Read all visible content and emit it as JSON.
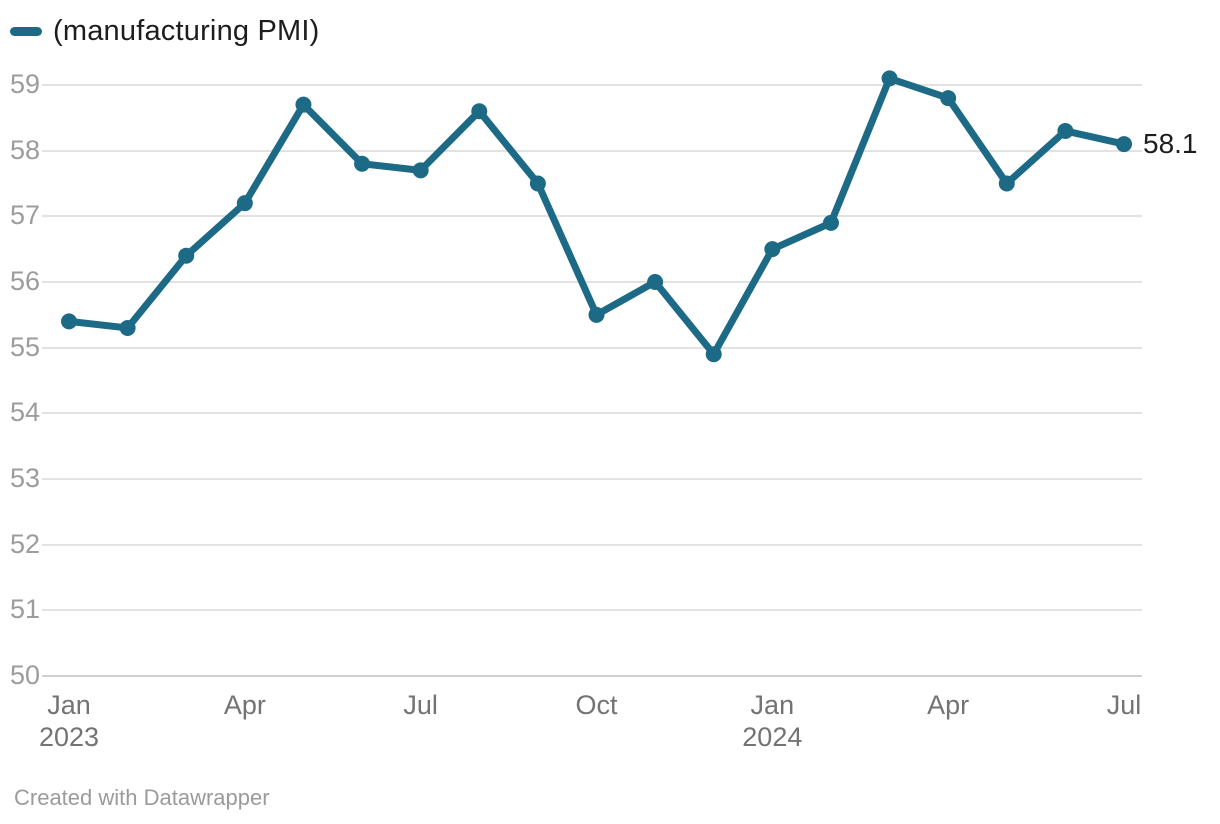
{
  "legend": {
    "series_label": "(manufacturing PMI)"
  },
  "chart_data": {
    "type": "line",
    "title": "",
    "xlabel": "",
    "ylabel": "",
    "grid": "horizontal",
    "legend_position": "top-left",
    "ylim": [
      50,
      59.4
    ],
    "y_ticks": [
      50,
      51,
      52,
      53,
      54,
      55,
      56,
      57,
      58,
      59
    ],
    "x_ticks": [
      {
        "index": 0,
        "label": "Jan",
        "sublabel": "2023"
      },
      {
        "index": 3,
        "label": "Apr",
        "sublabel": ""
      },
      {
        "index": 6,
        "label": "Jul",
        "sublabel": ""
      },
      {
        "index": 9,
        "label": "Oct",
        "sublabel": ""
      },
      {
        "index": 12,
        "label": "Jan",
        "sublabel": "2024"
      },
      {
        "index": 15,
        "label": "Apr",
        "sublabel": ""
      },
      {
        "index": 18,
        "label": "Jul",
        "sublabel": ""
      }
    ],
    "series": [
      {
        "name": "(manufacturing PMI)",
        "x": [
          "Jan 2023",
          "Feb 2023",
          "Mar 2023",
          "Apr 2023",
          "May 2023",
          "Jun 2023",
          "Jul 2023",
          "Aug 2023",
          "Sep 2023",
          "Oct 2023",
          "Nov 2023",
          "Dec 2023",
          "Jan 2024",
          "Feb 2024",
          "Mar 2024",
          "Apr 2024",
          "May 2024",
          "Jun 2024",
          "Jul 2024"
        ],
        "values": [
          55.4,
          55.3,
          56.4,
          57.2,
          58.7,
          57.8,
          57.7,
          58.6,
          57.5,
          55.5,
          56.0,
          54.9,
          56.5,
          56.9,
          59.1,
          58.8,
          57.5,
          58.3,
          58.1
        ]
      }
    ],
    "end_label": "58.1"
  },
  "footer": {
    "attribution": "Created with Datawrapper"
  },
  "colors": {
    "line": "#1d6a86",
    "grid": "#e2e2e2",
    "grid_baseline": "#d0d0d0",
    "y_tick_text": "#9c9c9c",
    "x_tick_text": "#737373",
    "legend_text": "#1d1d1d",
    "end_label_text": "#1d1d1d",
    "footer_text": "#9b9b9b",
    "background": "#ffffff"
  }
}
